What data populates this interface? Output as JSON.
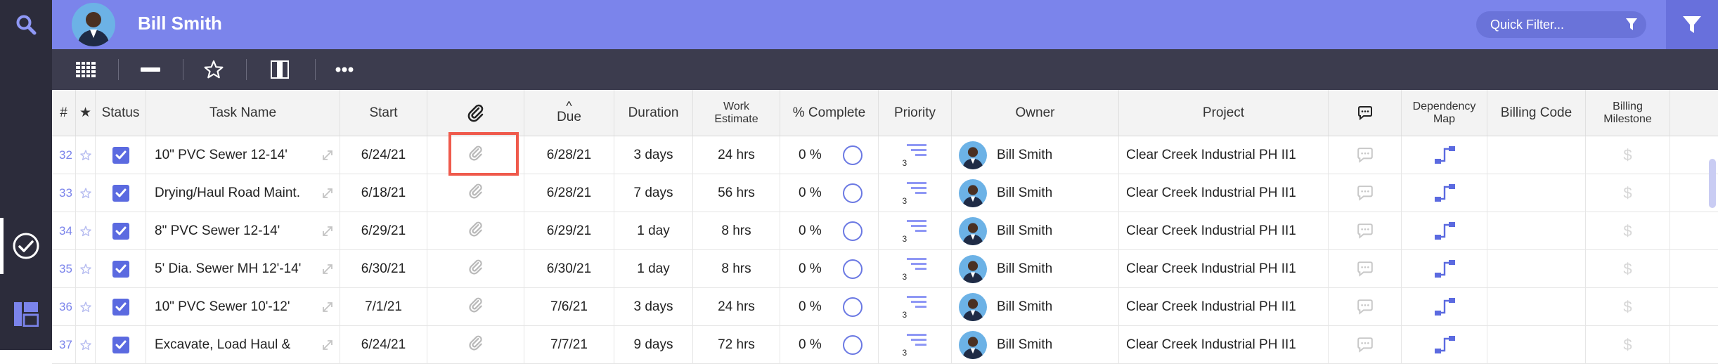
{
  "header": {
    "user_name": "Bill Smith",
    "quick_filter_placeholder": "Quick Filter..."
  },
  "columns": {
    "num": "#",
    "star": "★",
    "status": "Status",
    "task_name": "Task Name",
    "start": "Start",
    "due_sort_indicator": "^",
    "due": "Due",
    "duration": "Duration",
    "work_estimate": "Work Estimate",
    "percent_complete": "% Complete",
    "priority": "Priority",
    "owner": "Owner",
    "project": "Project",
    "dependency_map": "Dependency Map",
    "billing_code": "Billing Code",
    "billing_milestone": "Billing Milestone"
  },
  "rows": [
    {
      "num": "32",
      "task": "10\" PVC Sewer 12-14'",
      "start": "6/24/21",
      "due": "6/28/21",
      "duration": "3 days",
      "estimate": "24 hrs",
      "pct": "0 %",
      "priority": "3",
      "owner": "Bill Smith",
      "project": "Clear Creek Industrial PH II1",
      "billing": "$"
    },
    {
      "num": "33",
      "task": "Drying/Haul Road Maint.",
      "start": "6/18/21",
      "due": "6/28/21",
      "duration": "7 days",
      "estimate": "56 hrs",
      "pct": "0 %",
      "priority": "3",
      "owner": "Bill Smith",
      "project": "Clear Creek Industrial PH II1",
      "billing": "$"
    },
    {
      "num": "34",
      "task": "8\" PVC Sewer 12-14'",
      "start": "6/29/21",
      "due": "6/29/21",
      "duration": "1 day",
      "estimate": "8 hrs",
      "pct": "0 %",
      "priority": "3",
      "owner": "Bill Smith",
      "project": "Clear Creek Industrial PH II1",
      "billing": "$"
    },
    {
      "num": "35",
      "task": "5' Dia. Sewer MH 12'-14'",
      "start": "6/30/21",
      "due": "6/30/21",
      "duration": "1 day",
      "estimate": "8 hrs",
      "pct": "0 %",
      "priority": "3",
      "owner": "Bill Smith",
      "project": "Clear Creek Industrial PH II1",
      "billing": "$"
    },
    {
      "num": "36",
      "task": "10\" PVC Sewer 10'-12'",
      "start": "7/1/21",
      "due": "7/6/21",
      "duration": "3 days",
      "estimate": "24 hrs",
      "pct": "0 %",
      "priority": "3",
      "owner": "Bill Smith",
      "project": "Clear Creek Industrial PH II1",
      "billing": "$"
    },
    {
      "num": "37",
      "task": "Excavate, Load Haul &",
      "start": "6/24/21",
      "due": "7/7/21",
      "duration": "9 days",
      "estimate": "72 hrs",
      "pct": "0 %",
      "priority": "3",
      "owner": "Bill Smith",
      "project": "Clear Creek Industrial PH II1",
      "billing": "$"
    }
  ],
  "colors": {
    "header_bg": "#7b84eb",
    "rail_bg": "#2c2c3b",
    "toolbar_bg": "#3c3c4e",
    "checkbox": "#5b6ae0",
    "highlight": "#ef5a4c"
  }
}
